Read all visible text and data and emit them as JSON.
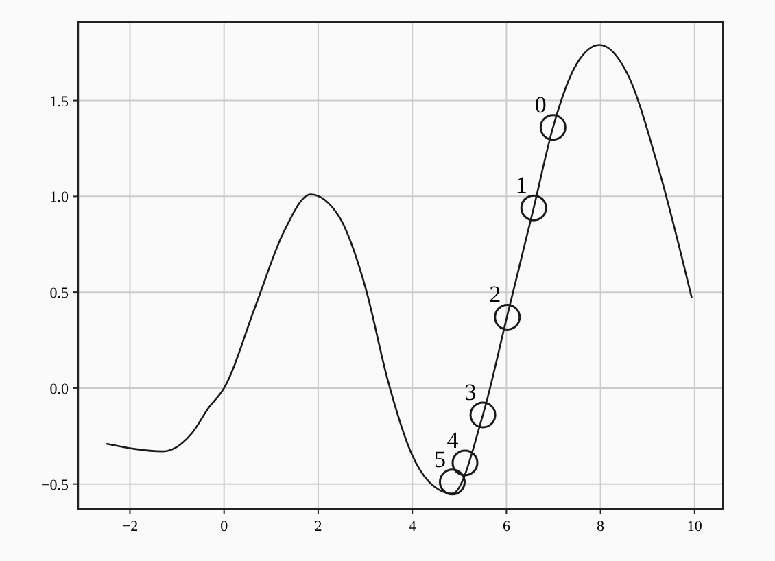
{
  "chart_data": {
    "type": "line",
    "xlim": [
      -3.1,
      10.6
    ],
    "ylim": [
      -0.63,
      1.91
    ],
    "xticks": [
      {
        "value": -2,
        "label": "−2"
      },
      0,
      2,
      4,
      6,
      8,
      10
    ],
    "yticks": [
      {
        "value": -0.5,
        "label": "−0.5"
      },
      {
        "value": 0,
        "label": "0.0"
      },
      0.5,
      {
        "value": 1,
        "label": "1.0"
      },
      1.5
    ],
    "grid": true,
    "series": [
      {
        "color": "#1a1a1a",
        "marker": "none",
        "x": [
          -2.5,
          -1.29,
          -0.7,
          -0.32,
          0,
          0.67,
          1.26,
          1.84,
          2.43,
          3.01,
          3.48,
          3.98,
          4.36,
          4.85,
          5.5,
          6.02,
          6.58,
          6.99,
          7.49,
          7.98,
          8.57,
          9.24,
          9.94
        ],
        "values": [
          -0.29,
          -0.33,
          -0.24,
          -0.1,
          0,
          0.43,
          0.81,
          1.01,
          0.9,
          0.52,
          0.04,
          -0.34,
          -0.49,
          -0.55,
          -0.14,
          0.38,
          0.94,
          1.36,
          1.69,
          1.79,
          1.64,
          1.14,
          0.47
        ]
      },
      {
        "type": "scatter",
        "color": "#1a1a1a",
        "marker": "circle",
        "x": [
          6.99,
          6.58,
          6.02,
          5.5,
          5.12,
          4.85
        ],
        "values": [
          1.36,
          0.94,
          0.37,
          -0.14,
          -0.39,
          -0.49
        ]
      }
    ],
    "annotations": [
      {
        "text": "0",
        "x": 6.99,
        "y": 1.36
      },
      {
        "text": "1",
        "x": 6.58,
        "y": 0.94
      },
      {
        "text": "2",
        "x": 6.02,
        "y": 0.37
      },
      {
        "text": "3",
        "x": 5.5,
        "y": -0.14
      },
      {
        "text": "4",
        "x": 5.12,
        "y": -0.39
      },
      {
        "text": "5",
        "x": 4.85,
        "y": -0.49
      }
    ]
  }
}
